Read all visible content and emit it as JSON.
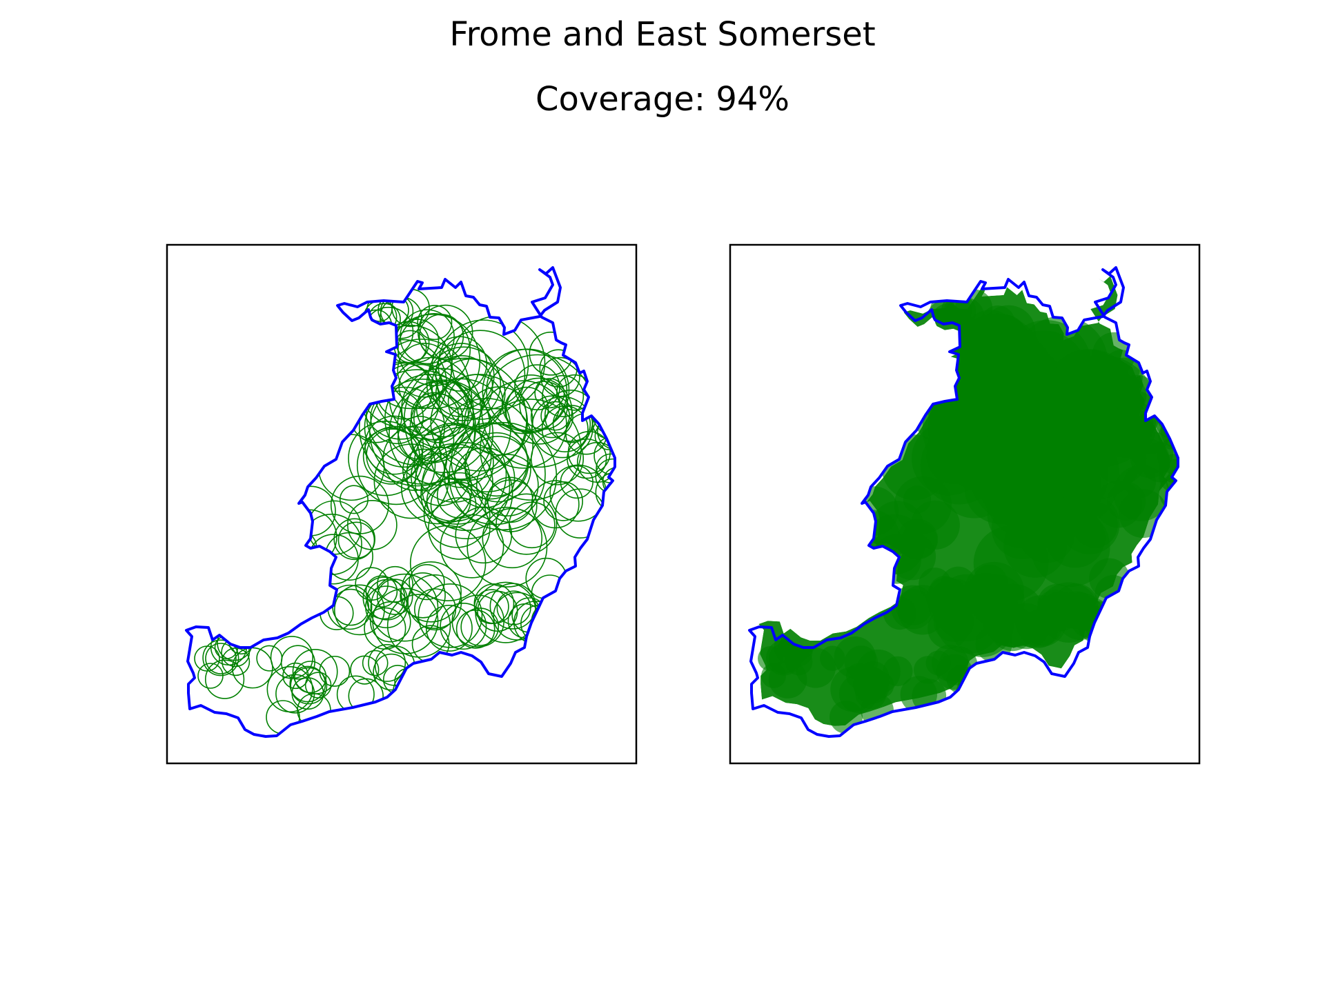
{
  "figure": {
    "title": "Frome and East Somerset",
    "subtitle": "Coverage: 94%"
  },
  "colors": {
    "boundary": "#0000ff",
    "circle": "#008000",
    "frame": "#000000",
    "background": "#ffffff"
  },
  "chart_data": [
    {
      "type": "map",
      "panel": "left",
      "style": "circle outlines",
      "title": "",
      "xlabel": "",
      "ylabel": "",
      "axes_ticks": false,
      "grid": false,
      "legend": "none"
    },
    {
      "type": "map",
      "panel": "right",
      "style": "filled translucent circles",
      "title": "",
      "xlabel": "",
      "ylabel": "",
      "axes_ticks": false,
      "grid": false,
      "legend": "none"
    }
  ]
}
